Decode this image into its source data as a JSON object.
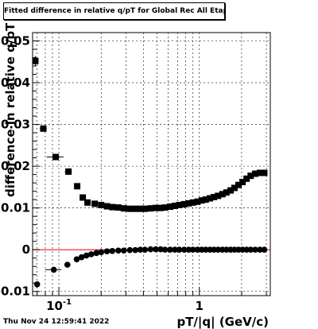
{
  "title": "Fitted difference in relative q/pT for Global Rec All EtapT",
  "timestamp": "Thu Nov 24 12:59:41 2022",
  "chart_data": {
    "type": "scatter",
    "title": "Fitted difference in relative q/pT for Global Rec All EtapT",
    "xlabel": "pT/|q| (GeV/c)",
    "ylabel": "difference in relative q/pT",
    "xscale": "log",
    "xlim": [
      0.065,
      3.2
    ],
    "ylim": [
      -0.011,
      0.052
    ],
    "x_tick_labels": [
      "10^-1",
      "1"
    ],
    "y_tick_labels": [
      "-0.01",
      "0",
      "0.01",
      "0.02",
      "0.03",
      "0.04",
      "0.05"
    ],
    "reference_line": {
      "y": 0,
      "color": "#ff0000"
    },
    "grid": true,
    "series": [
      {
        "marker": "square",
        "color": "#000000",
        "points": [
          {
            "x": 0.068,
            "y": 0.0452,
            "xerr": [
              0.002,
              0.002
            ],
            "yerr": 0.0012
          },
          {
            "x": 0.0775,
            "y": 0.029,
            "xerr": [
              0.0045,
              0.0045
            ],
            "yerr": 0.0006
          },
          {
            "x": 0.095,
            "y": 0.0222,
            "xerr": [
              0.013,
              0.013
            ],
            "yerr": 0.0005
          },
          {
            "x": 0.117,
            "y": 0.0187,
            "xerr": [
              0.007,
              0.007
            ],
            "yerr": 0.0004
          },
          {
            "x": 0.135,
            "y": 0.0152,
            "yerr": 0.0003
          },
          {
            "x": 0.148,
            "y": 0.0125,
            "yerr": 0.0003
          },
          {
            "x": 0.16,
            "y": 0.0113
          },
          {
            "x": 0.18,
            "y": 0.011
          },
          {
            "x": 0.2,
            "y": 0.0107
          },
          {
            "x": 0.22,
            "y": 0.0104
          },
          {
            "x": 0.24,
            "y": 0.0102
          },
          {
            "x": 0.265,
            "y": 0.0101
          },
          {
            "x": 0.29,
            "y": 0.0099
          },
          {
            "x": 0.32,
            "y": 0.0098
          },
          {
            "x": 0.35,
            "y": 0.0098
          },
          {
            "x": 0.38,
            "y": 0.0098
          },
          {
            "x": 0.41,
            "y": 0.0098
          },
          {
            "x": 0.45,
            "y": 0.0099
          },
          {
            "x": 0.49,
            "y": 0.01
          },
          {
            "x": 0.53,
            "y": 0.01
          },
          {
            "x": 0.57,
            "y": 0.0101
          },
          {
            "x": 0.62,
            "y": 0.0103
          },
          {
            "x": 0.67,
            "y": 0.0105
          },
          {
            "x": 0.72,
            "y": 0.0107
          },
          {
            "x": 0.78,
            "y": 0.0109
          },
          {
            "x": 0.84,
            "y": 0.0111
          },
          {
            "x": 0.9,
            "y": 0.0113
          },
          {
            "x": 0.97,
            "y": 0.0115
          },
          {
            "x": 1.04,
            "y": 0.0118
          },
          {
            "x": 1.11,
            "y": 0.012
          },
          {
            "x": 1.19,
            "y": 0.0123
          },
          {
            "x": 1.27,
            "y": 0.0126
          },
          {
            "x": 1.36,
            "y": 0.0129
          },
          {
            "x": 1.46,
            "y": 0.0133
          },
          {
            "x": 1.56,
            "y": 0.0137
          },
          {
            "x": 1.67,
            "y": 0.0142
          },
          {
            "x": 1.78,
            "y": 0.0148
          },
          {
            "x": 1.9,
            "y": 0.0155
          },
          {
            "x": 2.03,
            "y": 0.0162
          },
          {
            "x": 2.17,
            "y": 0.017
          },
          {
            "x": 2.32,
            "y": 0.0177
          },
          {
            "x": 2.5,
            "y": 0.0182
          },
          {
            "x": 2.7,
            "y": 0.0184
          },
          {
            "x": 2.9,
            "y": 0.0184
          }
        ]
      },
      {
        "marker": "circle",
        "color": "#000000",
        "points": [
          {
            "x": 0.07,
            "y": -0.0083,
            "yerr": 0.0005
          },
          {
            "x": 0.092,
            "y": -0.0048,
            "xerr": [
              0.012,
              0.012
            ],
            "yerr": 0.0003
          },
          {
            "x": 0.115,
            "y": -0.0036,
            "xerr": [
              0.006,
              0.006
            ]
          },
          {
            "x": 0.134,
            "y": -0.0023
          },
          {
            "x": 0.145,
            "y": -0.0018
          },
          {
            "x": 0.157,
            "y": -0.0014
          },
          {
            "x": 0.17,
            "y": -0.0011
          },
          {
            "x": 0.185,
            "y": -0.0008
          },
          {
            "x": 0.2,
            "y": -0.0006
          },
          {
            "x": 0.22,
            "y": -0.0004
          },
          {
            "x": 0.24,
            "y": -0.0003
          },
          {
            "x": 0.265,
            "y": -0.0002
          },
          {
            "x": 0.29,
            "y": -0.0002
          },
          {
            "x": 0.32,
            "y": -0.0001
          },
          {
            "x": 0.35,
            "y": -0.0001
          },
          {
            "x": 0.38,
            "y": 0.0
          },
          {
            "x": 0.41,
            "y": 0.0
          },
          {
            "x": 0.45,
            "y": 0.0001
          },
          {
            "x": 0.49,
            "y": 0.0001
          },
          {
            "x": 0.53,
            "y": 0.0001
          },
          {
            "x": 0.57,
            "y": 0.0
          },
          {
            "x": 0.62,
            "y": 0.0
          },
          {
            "x": 0.67,
            "y": 0.0
          },
          {
            "x": 0.72,
            "y": 0.0
          },
          {
            "x": 0.78,
            "y": 0.0
          },
          {
            "x": 0.84,
            "y": 0.0
          },
          {
            "x": 0.9,
            "y": 0.0
          },
          {
            "x": 0.97,
            "y": 0.0
          },
          {
            "x": 1.04,
            "y": 0.0
          },
          {
            "x": 1.11,
            "y": 0.0
          },
          {
            "x": 1.19,
            "y": 0.0
          },
          {
            "x": 1.27,
            "y": 0.0
          },
          {
            "x": 1.36,
            "y": 0.0
          },
          {
            "x": 1.46,
            "y": 0.0
          },
          {
            "x": 1.56,
            "y": 0.0
          },
          {
            "x": 1.67,
            "y": 0.0
          },
          {
            "x": 1.78,
            "y": 0.0
          },
          {
            "x": 1.9,
            "y": 0.0
          },
          {
            "x": 2.03,
            "y": 0.0
          },
          {
            "x": 2.17,
            "y": 0.0
          },
          {
            "x": 2.32,
            "y": 0.0
          },
          {
            "x": 2.5,
            "y": 0.0
          },
          {
            "x": 2.7,
            "y": 0.0
          },
          {
            "x": 2.9,
            "y": 0.0
          }
        ]
      }
    ]
  }
}
